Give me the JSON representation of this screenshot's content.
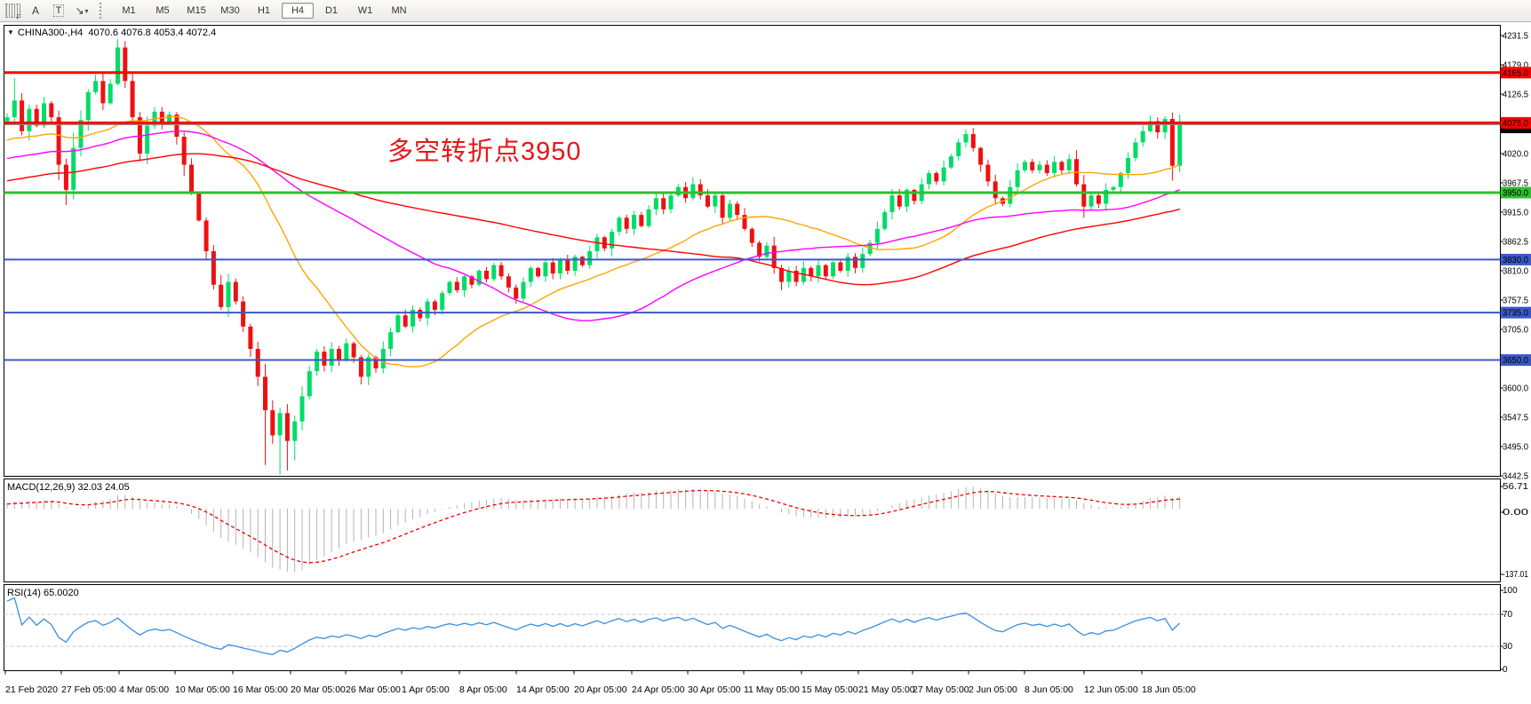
{
  "toolbar": {
    "icons": [
      {
        "name": "grid-f-icon",
        "text": "F"
      },
      {
        "name": "text-a-icon",
        "text": "A"
      },
      {
        "name": "label-t-icon",
        "text": "T"
      },
      {
        "name": "arrow-tool-icon",
        "text": "↘"
      },
      {
        "name": "dropdown-caret-icon",
        "text": "▾"
      }
    ],
    "timeframes": [
      "M1",
      "M5",
      "M15",
      "M30",
      "H1",
      "H4",
      "D1",
      "W1",
      "MN"
    ],
    "active_timeframe": "H4"
  },
  "chart_header": {
    "dropdown_glyph": "▼",
    "symbol": "CHINA300-,H4",
    "open": "4070.6",
    "high": "4076.8",
    "low": "4053.4",
    "close": "4072.4"
  },
  "annotation": {
    "text": "多空转折点3950",
    "color": "#e81515"
  },
  "indicator_labels": {
    "macd": {
      "name": "MACD(12,26,9)",
      "main_value": "32.03",
      "signal_value": "24.05"
    },
    "rsi": {
      "name": "RSI(14)",
      "value": "65.0020"
    }
  },
  "chart_data": {
    "type": "candlestick",
    "symbol": "CHINA300-",
    "timeframe": "H4",
    "ohlc_current": {
      "open": 4070.6,
      "high": 4076.8,
      "low": 4053.4,
      "close": 4072.4
    },
    "price_axis": {
      "ticks": [
        4231.5,
        4179.0,
        4126.5,
        4020.0,
        3967.5,
        3915.0,
        3862.5,
        3810.0,
        3757.5,
        3705.0,
        3600.0,
        3547.5,
        3495.0,
        3442.5
      ],
      "ylim": [
        3441,
        4251
      ]
    },
    "horizontal_lines": [
      {
        "label": "4165.0",
        "price": 4165.0,
        "color": "#ff0000",
        "width": 3
      },
      {
        "label": "4075.0",
        "price": 4075.0,
        "color": "#ff0000",
        "width": 3
      },
      {
        "label": "3950.0",
        "price": 3950.0,
        "color": "#2fbe2f",
        "width": 3
      },
      {
        "label": "3830.0",
        "price": 3830.0,
        "color": "#3b59c8",
        "width": 2
      },
      {
        "label": "3735.0",
        "price": 3735.0,
        "color": "#3b59c8",
        "width": 2
      },
      {
        "label": "3650.0",
        "price": 3650.0,
        "color": "#3b59c8",
        "width": 2
      }
    ],
    "current_price": {
      "value": 4072.4,
      "label": "4072.4",
      "line_color": "#909090",
      "badge_bg": "#000000"
    },
    "candles": {
      "bull_color": "#00dd66",
      "bear_color": "#ee1111",
      "first_open": 4078,
      "closes": [
        4085,
        4115,
        4060,
        4100,
        4070,
        4110,
        4085,
        4000,
        3955,
        4030,
        4080,
        4130,
        4150,
        4110,
        4145,
        4210,
        4150,
        4085,
        4020,
        4070,
        4095,
        4075,
        4090,
        4050,
        4000,
        3950,
        3900,
        3845,
        3785,
        3745,
        3790,
        3755,
        3710,
        3670,
        3620,
        3560,
        3515,
        3555,
        3505,
        3540,
        3585,
        3630,
        3665,
        3640,
        3670,
        3650,
        3680,
        3655,
        3620,
        3655,
        3635,
        3670,
        3700,
        3730,
        3710,
        3740,
        3725,
        3755,
        3740,
        3770,
        3790,
        3775,
        3800,
        3785,
        3810,
        3795,
        3820,
        3800,
        3780,
        3760,
        3790,
        3815,
        3800,
        3825,
        3805,
        3830,
        3810,
        3835,
        3820,
        3845,
        3870,
        3850,
        3880,
        3905,
        3885,
        3910,
        3890,
        3920,
        3940,
        3920,
        3945,
        3960,
        3940,
        3965,
        3945,
        3925,
        3945,
        3905,
        3930,
        3910,
        3885,
        3860,
        3835,
        3855,
        3815,
        3790,
        3810,
        3790,
        3815,
        3800,
        3820,
        3800,
        3825,
        3810,
        3835,
        3815,
        3840,
        3860,
        3885,
        3915,
        3945,
        3925,
        3955,
        3935,
        3965,
        3985,
        3970,
        3995,
        4015,
        4040,
        4055,
        4030,
        4000,
        3970,
        3940,
        3930,
        3960,
        3990,
        4005,
        3990,
        4000,
        3985,
        4005,
        3990,
        4010,
        3965,
        3925,
        3945,
        3930,
        3955,
        3960,
        3985,
        4012,
        4040,
        4060,
        4078,
        4058,
        4082,
        3998,
        4072.4
      ],
      "wick_overrides": {
        "1": [
          4155,
          null
        ],
        "8": [
          null,
          3928
        ],
        "15": [
          4225,
          null
        ],
        "35": [
          null,
          3462
        ],
        "36": [
          null,
          3500
        ],
        "37": [
          null,
          3445
        ],
        "38": [
          null,
          3452
        ],
        "39": [
          null,
          3470
        ],
        "93": [
          3978,
          null
        ],
        "105": [
          null,
          3775
        ],
        "146": [
          null,
          3905
        ],
        "159": [
          4090,
          null
        ]
      }
    },
    "moving_averages": [
      {
        "name": "ma-fast",
        "period": 24,
        "color": "#ffa500"
      },
      {
        "name": "ma-medium",
        "period": 52,
        "color": "#ff00ff"
      },
      {
        "name": "ma-slow",
        "period": 90,
        "color": "#ff0000"
      }
    ],
    "prehistory": {
      "n": 90,
      "base": 3870,
      "slope": 2.2,
      "amp": 25
    },
    "macd": {
      "params": [
        12,
        26,
        9
      ],
      "main_value": 32.03,
      "signal_value": 24.05,
      "axis_ticks": [
        "56.71",
        "0.00",
        "-137.01"
      ],
      "hist_color": "#b4b4b4",
      "signal_color": "#ee0000"
    },
    "rsi": {
      "period": 14,
      "value": 65.002,
      "axis_ticks": [
        "100",
        "70",
        "30",
        "0"
      ],
      "levels": [
        70,
        30
      ],
      "color": "#3a8fde"
    },
    "x_axis": {
      "labels": [
        "21 Feb 2020",
        "27 Feb 05:00",
        "4 Mar 05:00",
        "10 Mar 05:00",
        "16 Mar 05:00",
        "20 Mar 05:00",
        "26 Mar 05:00",
        "1 Apr 05:00",
        "8 Apr 05:00",
        "14 Apr 05:00",
        "20 Apr 05:00",
        "24 Apr 05:00",
        "30 Apr 05:00",
        "11 May 05:00",
        "15 May 05:00",
        "21 May 05:00",
        "27 May 05:00",
        "2 Jun 05:00",
        "8 Jun 05:00",
        "12 Jun 05:00",
        "18 Jun 05:00"
      ],
      "positions": [
        4,
        67,
        132,
        195,
        260,
        325,
        387,
        450,
        515,
        579,
        644,
        709,
        772,
        835,
        900,
        964,
        1025,
        1088,
        1151,
        1218,
        1283
      ]
    }
  }
}
